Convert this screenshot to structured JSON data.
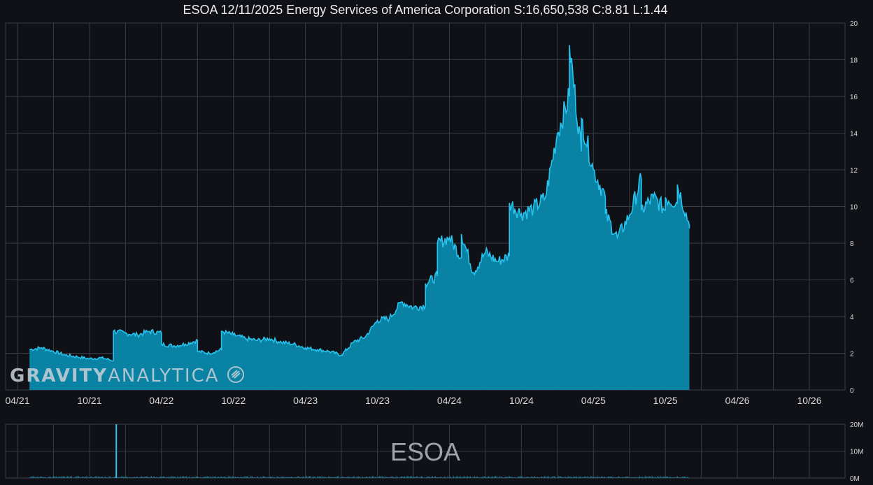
{
  "chart_data": [
    {
      "type": "area",
      "title": "ESOA 12/11/2025 Energy Services of America Corporation S:16,650,538 C:8.81 L:1.44",
      "x_ticks": [
        "04/21",
        "10/21",
        "04/22",
        "10/22",
        "04/23",
        "10/23",
        "04/24",
        "10/24",
        "04/25",
        "10/25",
        "04/26",
        "10/26"
      ],
      "y_ticks": [
        "0",
        "2",
        "4",
        "6",
        "8",
        "10",
        "12",
        "14",
        "16",
        "18",
        "20"
      ],
      "ylim": [
        0,
        20
      ],
      "grid": true,
      "colors": {
        "line": "#27c3ee",
        "fill": "#0a89ab"
      },
      "series": [
        {
          "values": [
            [
              "05/2021",
              2.2
            ],
            [
              "06/2021",
              2.3
            ],
            [
              "07/2021",
              2.1
            ],
            [
              "08/2021",
              1.9
            ],
            [
              "09/2021",
              1.8
            ],
            [
              "10/2021",
              1.7
            ],
            [
              "11/2021",
              1.75
            ],
            [
              "12/2021",
              1.6
            ],
            [
              "12/2021",
              3.2
            ],
            [
              "01/2022",
              3.1
            ],
            [
              "02/2022",
              3.0
            ],
            [
              "03/2022",
              3.2
            ],
            [
              "04/2022",
              3.1
            ],
            [
              "04/2022",
              2.5
            ],
            [
              "05/2022",
              2.4
            ],
            [
              "06/2022",
              2.5
            ],
            [
              "07/2022",
              2.7
            ],
            [
              "07/2022",
              2.1
            ],
            [
              "08/2022",
              2.0
            ],
            [
              "09/2022",
              2.2
            ],
            [
              "09/2022",
              3.2
            ],
            [
              "10/2022",
              3.0
            ],
            [
              "11/2022",
              2.8
            ],
            [
              "12/2022",
              2.7
            ],
            [
              "01/2023",
              2.8
            ],
            [
              "02/2023",
              2.6
            ],
            [
              "03/2023",
              2.5
            ],
            [
              "04/2023",
              2.3
            ],
            [
              "05/2023",
              2.2
            ],
            [
              "06/2023",
              2.1
            ],
            [
              "07/2023",
              1.9
            ],
            [
              "08/2023",
              2.6
            ],
            [
              "09/2023",
              2.9
            ],
            [
              "10/2023",
              3.8
            ],
            [
              "11/2023",
              3.9
            ],
            [
              "12/2023",
              4.8
            ],
            [
              "01/2024",
              4.5
            ],
            [
              "02/2024",
              4.6
            ],
            [
              "02/2024",
              5.8
            ],
            [
              "03/2024",
              6.2
            ],
            [
              "03/2024",
              8.0
            ],
            [
              "04/2024",
              8.3
            ],
            [
              "05/2024",
              7.2
            ],
            [
              "05/2024",
              8.5
            ],
            [
              "06/2024",
              6.4
            ],
            [
              "07/2024",
              7.5
            ],
            [
              "08/2024",
              7.0
            ],
            [
              "09/2024",
              7.3
            ],
            [
              "09/2024",
              10.2
            ],
            [
              "10/2024",
              9.6
            ],
            [
              "11/2024",
              9.9
            ],
            [
              "12/2024",
              10.5
            ],
            [
              "01/2025",
              14.0
            ],
            [
              "02/2025",
              16.0
            ],
            [
              "02/2025",
              18.8
            ],
            [
              "03/2025",
              13.0
            ],
            [
              "03/2025",
              14.8
            ],
            [
              "04/2025",
              12.0
            ],
            [
              "05/2025",
              10.5
            ],
            [
              "05/2025",
              9.6
            ],
            [
              "06/2025",
              8.3
            ],
            [
              "07/2025",
              9.5
            ],
            [
              "08/2025",
              11.5
            ],
            [
              "08/2025",
              9.8
            ],
            [
              "09/2025",
              10.5
            ],
            [
              "10/2025",
              9.8
            ],
            [
              "10/2025",
              10.5
            ],
            [
              "11/2025",
              10.2
            ],
            [
              "11/2025",
              11.2
            ],
            [
              "12/2025",
              9.0
            ],
            [
              "12/2025",
              8.81
            ]
          ]
        }
      ]
    },
    {
      "type": "bar",
      "ticker": "ESOA",
      "y_ticks": [
        "0M",
        "10M",
        "20M"
      ],
      "ylim": [
        0,
        20000000
      ],
      "spike": {
        "date": "12/2021",
        "value": 20000000
      },
      "baseline_level": 400000
    }
  ],
  "watermark": {
    "bold": "GRAVITY",
    "light": "ANALYTICA"
  }
}
